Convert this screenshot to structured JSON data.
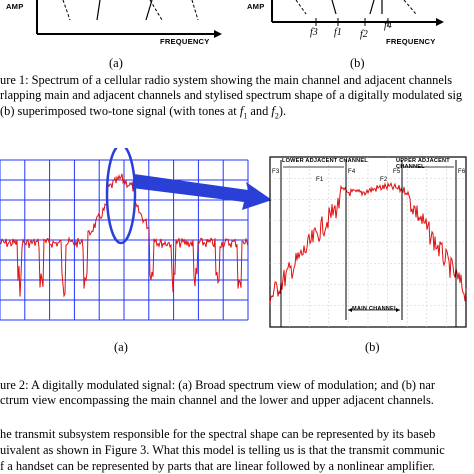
{
  "fig1": {
    "panel_a_axis_top": "AMP",
    "panel_a_xlabel": "FREQUENCY",
    "panel_b_axis_top": "AMP",
    "panel_b_xlabel": "FREQUENCY",
    "tone_labels": [
      "f3",
      "f1",
      "f2",
      "f4"
    ],
    "label_a": "(a)",
    "label_b": "(b)",
    "caption_line1": "ure 1: Spectrum of a cellular radio system showing the main channel and adjacent channels",
    "caption_line2": "rlapping main and adjacent channels and stylised spectrum shape of a digitally modulated sig",
    "caption_line3_pre": "(b) superimposed two-tone signal (with tones at ",
    "caption_f1": "f",
    "caption_f1_sub": "1",
    "caption_and": " and ",
    "caption_f2": "f",
    "caption_f2_sub": "2",
    "caption_end": ")."
  },
  "fig2": {
    "lower_adjacent": "LOWER ADJACENT CHANNEL",
    "upper_adjacent": "UPPER ADJACENT CHANNEL",
    "freq_markers": [
      "F3",
      "F1",
      "F4",
      "F2",
      "F5",
      "F6"
    ],
    "main_channel": "MAIN CHANNEL",
    "label_a": "(a)",
    "label_b": "(b)",
    "caption_line1": "ure 2: A digitally modulated signal: (a) Broad spectrum view of modulation; and (b) nar",
    "caption_line2": "ctrum view encompassing the main channel and the lower and upper adjacent channels."
  },
  "body": {
    "line1": "he transmit subsystem responsible for the spectral shape can be represented by its baseb",
    "line2": "uivalent as shown in Figure 3.  What this model is telling us is that the transmit communic",
    "line3": "f a handset can be represented by parts that are linear followed by a nonlinear amplifier."
  },
  "colors": {
    "trace": "#e01010",
    "grid_blue": "#2233ff",
    "arrow_blue": "#2a3fd6"
  }
}
